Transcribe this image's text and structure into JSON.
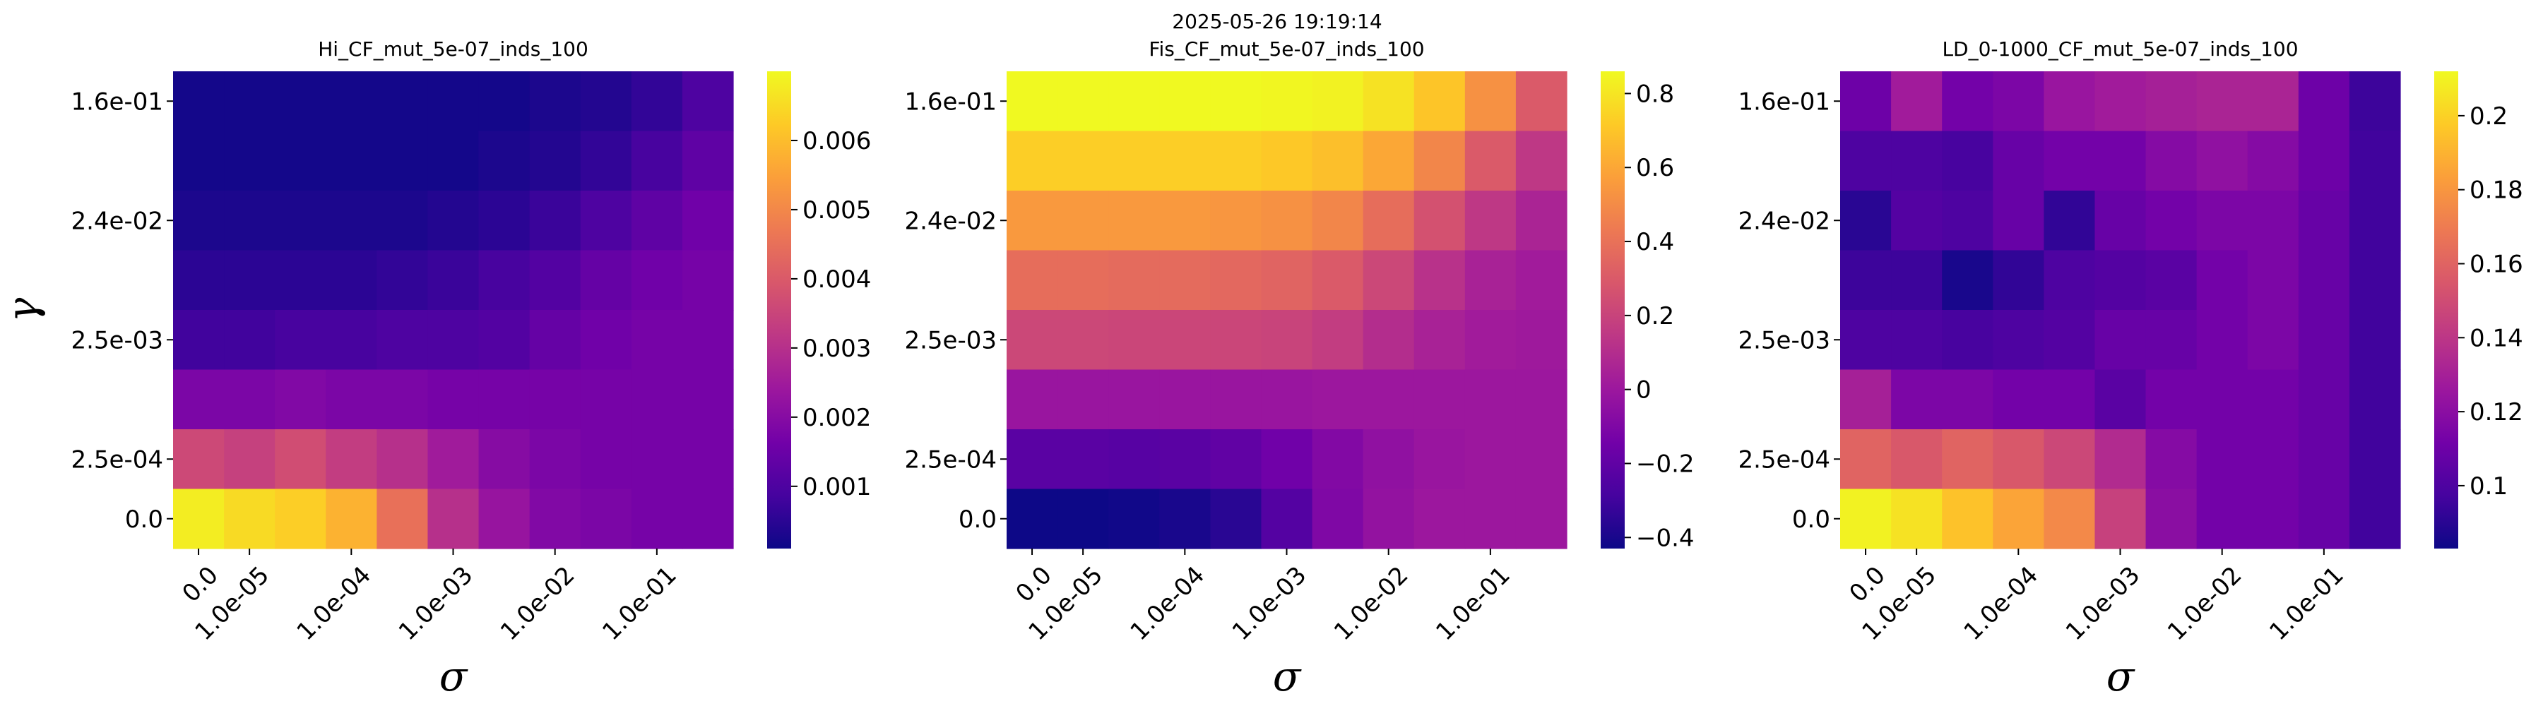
{
  "figure": {
    "suptitle": "2025-05-26 19:19:14"
  },
  "colormap": {
    "name": "plasma",
    "stops": [
      "#0d0887",
      "#46039f",
      "#7201a8",
      "#9c179e",
      "#bd3786",
      "#d8576b",
      "#ed7953",
      "#fb9f3a",
      "#fdca26",
      "#f0f921"
    ]
  },
  "chart_data": [
    {
      "type": "heatmap",
      "title": "Hi_CF_mut_5e-07_inds_100",
      "xlabel": "σ",
      "ylabel": "γ",
      "x_tick_labels": [
        "0.0",
        "1.0e-05",
        "1.0e-04",
        "1.0e-03",
        "1.0e-02",
        "1.0e-01"
      ],
      "y_tick_labels": [
        "1.6e-01",
        "2.4e-02",
        "2.5e-03",
        "2.5e-04",
        "0.0"
      ],
      "colorbar": {
        "vmin": 0.0001,
        "vmax": 0.007,
        "ticks": [
          0.001,
          0.002,
          0.003,
          0.004,
          0.005,
          0.006
        ]
      },
      "values": [
        [
          0.0002,
          0.0002,
          0.0002,
          0.0002,
          0.0002,
          0.0002,
          0.0002,
          0.0003,
          0.0004,
          0.0006,
          0.001
        ],
        [
          0.0002,
          0.0002,
          0.0002,
          0.0002,
          0.0002,
          0.0002,
          0.0003,
          0.0004,
          0.0006,
          0.0009,
          0.0013
        ],
        [
          0.0003,
          0.0003,
          0.0003,
          0.0003,
          0.0003,
          0.0004,
          0.0005,
          0.0007,
          0.001,
          0.0013,
          0.0016
        ],
        [
          0.0005,
          0.0005,
          0.0005,
          0.0005,
          0.0006,
          0.0007,
          0.0009,
          0.0011,
          0.0014,
          0.0016,
          0.0017
        ],
        [
          0.0008,
          0.0008,
          0.0009,
          0.0009,
          0.001,
          0.001,
          0.0011,
          0.0014,
          0.0016,
          0.0017,
          0.0017
        ],
        [
          0.0018,
          0.0018,
          0.0019,
          0.0018,
          0.0018,
          0.0017,
          0.0017,
          0.0017,
          0.0017,
          0.0017,
          0.0017
        ],
        [
          0.0036,
          0.0034,
          0.0037,
          0.0033,
          0.003,
          0.0025,
          0.002,
          0.0018,
          0.0017,
          0.0017,
          0.0017
        ],
        [
          0.0068,
          0.0065,
          0.0063,
          0.0058,
          0.0045,
          0.003,
          0.0023,
          0.0019,
          0.0018,
          0.0017,
          0.0017
        ]
      ]
    },
    {
      "type": "heatmap",
      "title": "Fis_CF_mut_5e-07_inds_100",
      "xlabel": "σ",
      "ylabel": "",
      "x_tick_labels": [
        "0.0",
        "1.0e-05",
        "1.0e-04",
        "1.0e-03",
        "1.0e-02",
        "1.0e-01"
      ],
      "y_tick_labels": [
        "1.6e-01",
        "2.4e-02",
        "2.5e-03",
        "2.5e-04",
        "0.0"
      ],
      "colorbar": {
        "vmin": -0.43,
        "vmax": 0.86,
        "ticks": [
          -0.4,
          -0.2,
          0.0,
          0.2,
          0.4,
          0.6,
          0.8
        ]
      },
      "values": [
        [
          0.86,
          0.86,
          0.86,
          0.86,
          0.86,
          0.85,
          0.84,
          0.79,
          0.7,
          0.52,
          0.3
        ],
        [
          0.73,
          0.73,
          0.73,
          0.73,
          0.73,
          0.71,
          0.68,
          0.6,
          0.48,
          0.3,
          0.15
        ],
        [
          0.55,
          0.55,
          0.55,
          0.55,
          0.54,
          0.52,
          0.48,
          0.38,
          0.26,
          0.15,
          0.06
        ],
        [
          0.38,
          0.38,
          0.37,
          0.37,
          0.36,
          0.34,
          0.3,
          0.22,
          0.12,
          0.05,
          0.02
        ],
        [
          0.22,
          0.22,
          0.21,
          0.21,
          0.21,
          0.2,
          0.17,
          0.1,
          0.05,
          0.02,
          0.01
        ],
        [
          -0.01,
          -0.01,
          -0.01,
          -0.01,
          -0.01,
          -0.01,
          0.0,
          0.0,
          0.0,
          0.0,
          0.0
        ],
        [
          -0.22,
          -0.22,
          -0.23,
          -0.22,
          -0.2,
          -0.15,
          -0.09,
          -0.04,
          -0.01,
          0.0,
          0.0
        ],
        [
          -0.43,
          -0.43,
          -0.42,
          -0.4,
          -0.36,
          -0.24,
          -0.1,
          -0.03,
          0.0,
          0.0,
          0.0
        ]
      ]
    },
    {
      "type": "heatmap",
      "title": "LD_0-1000_CF_mut_5e-07_inds_100",
      "xlabel": "σ",
      "ylabel": "",
      "x_tick_labels": [
        "0.0",
        "1.0e-05",
        "1.0e-04",
        "1.0e-03",
        "1.0e-02",
        "1.0e-01"
      ],
      "y_tick_labels": [
        "1.6e-01",
        "2.4e-02",
        "2.5e-03",
        "2.5e-04",
        "0.0"
      ],
      "colorbar": {
        "vmin": 0.083,
        "vmax": 0.212,
        "ticks": [
          0.1,
          0.12,
          0.14,
          0.16,
          0.18,
          0.2
        ]
      },
      "values": [
        [
          0.11,
          0.128,
          0.112,
          0.115,
          0.125,
          0.128,
          0.13,
          0.132,
          0.132,
          0.11,
          0.095
        ],
        [
          0.1,
          0.1,
          0.098,
          0.108,
          0.112,
          0.112,
          0.118,
          0.122,
          0.118,
          0.11,
          0.096
        ],
        [
          0.09,
          0.102,
          0.1,
          0.108,
          0.092,
          0.108,
          0.112,
          0.115,
          0.115,
          0.108,
          0.096
        ],
        [
          0.095,
          0.095,
          0.086,
          0.092,
          0.1,
          0.102,
          0.104,
          0.112,
          0.115,
          0.108,
          0.096
        ],
        [
          0.1,
          0.1,
          0.098,
          0.1,
          0.102,
          0.108,
          0.108,
          0.112,
          0.115,
          0.108,
          0.096
        ],
        [
          0.13,
          0.115,
          0.115,
          0.112,
          0.112,
          0.104,
          0.112,
          0.112,
          0.112,
          0.108,
          0.096
        ],
        [
          0.16,
          0.155,
          0.16,
          0.155,
          0.148,
          0.135,
          0.118,
          0.112,
          0.112,
          0.108,
          0.096
        ],
        [
          0.21,
          0.205,
          0.195,
          0.185,
          0.175,
          0.145,
          0.12,
          0.112,
          0.112,
          0.108,
          0.096
        ]
      ]
    }
  ]
}
